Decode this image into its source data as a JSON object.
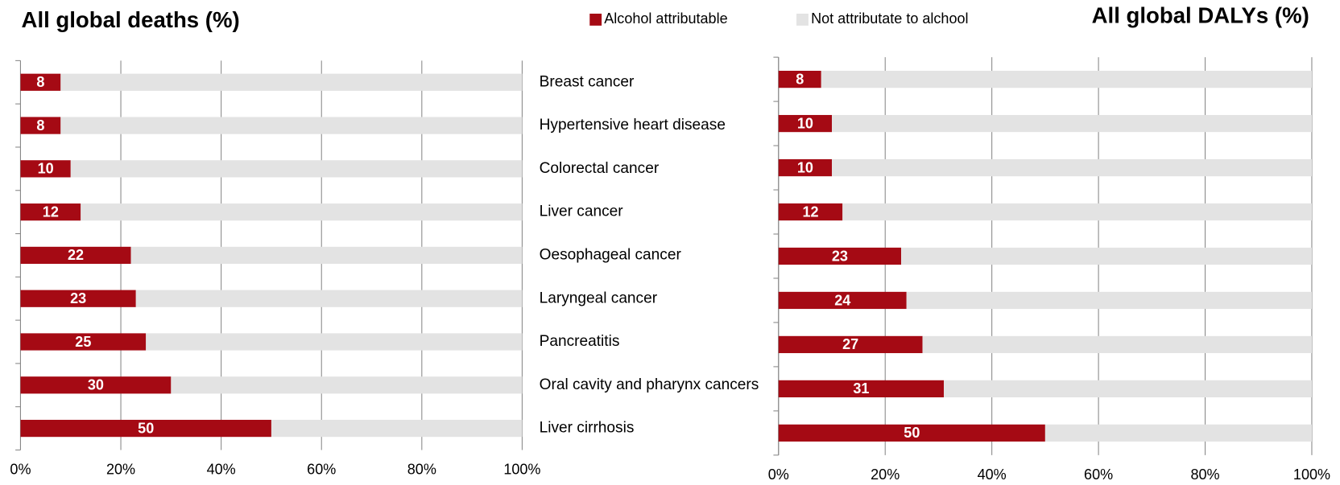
{
  "chart_data": [
    {
      "type": "stacked-bar-horizontal",
      "title": "All global  deaths (%)",
      "categories": [
        "Breast cancer",
        "Hypertensive heart disease",
        "Colorectal cancer",
        "Liver cancer",
        "Oesophageal cancer",
        "Laryngeal cancer",
        "Pancreatitis",
        "Oral cavity and pharynx cancers",
        "Liver cirrhosis"
      ],
      "series": [
        {
          "name": "Alcohol attributable",
          "color": "#a50a14",
          "values": [
            8,
            8,
            10,
            12,
            22,
            23,
            25,
            30,
            50
          ]
        },
        {
          "name": "Not attributate  to alchool",
          "color": "#e3e3e3",
          "values": [
            92,
            92,
            90,
            88,
            78,
            77,
            75,
            70,
            50
          ]
        }
      ],
      "xlim": [
        0,
        100
      ],
      "xticks": [
        {
          "value": 0,
          "label": "0%"
        },
        {
          "value": 20,
          "label": "20%"
        },
        {
          "value": 40,
          "label": "40%"
        },
        {
          "value": 60,
          "label": "60%"
        },
        {
          "value": 80,
          "label": "80%"
        },
        {
          "value": 100,
          "label": "100%"
        }
      ],
      "grid": true
    },
    {
      "type": "stacked-bar-horizontal",
      "title": "All global DALYs (%)",
      "series": [
        {
          "color": "#a50a14",
          "values": [
            8,
            10,
            10,
            12,
            23,
            24,
            27,
            31,
            50
          ]
        },
        {
          "color": "#e3e3e3",
          "values": [
            92,
            90,
            90,
            88,
            77,
            76,
            73,
            69,
            50
          ]
        }
      ],
      "xlim": [
        0,
        100
      ],
      "xticks": [
        {
          "value": 0,
          "label": "0%"
        },
        {
          "value": 20,
          "label": "20%"
        },
        {
          "value": 40,
          "label": "40%"
        },
        {
          "value": 60,
          "label": "60%"
        },
        {
          "value": 80,
          "label": "80%"
        },
        {
          "value": 100,
          "label": "100%"
        }
      ],
      "grid": true
    }
  ]
}
